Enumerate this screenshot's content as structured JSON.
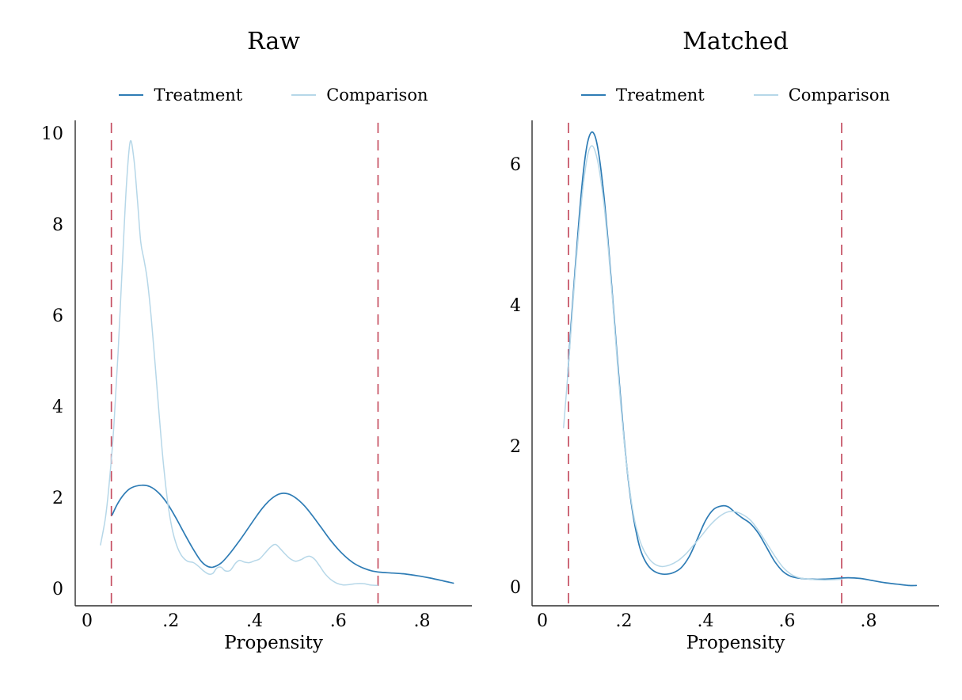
{
  "style": {
    "background": "#ffffff",
    "axis_color": "#2e2e2e",
    "text_color": "#000000"
  },
  "chart_data": [
    {
      "type": "line",
      "title": "Raw",
      "xlabel": "Propensity",
      "ylabel": "",
      "grid": false,
      "legend_position": "top-center",
      "xlim": [
        -0.028,
        0.92
      ],
      "ylim": [
        0,
        10.3
      ],
      "x_ticks": [
        {
          "v": 0.0,
          "label": "0"
        },
        {
          "v": 0.2,
          "label": ".2"
        },
        {
          "v": 0.4,
          "label": ".4"
        },
        {
          "v": 0.6,
          "label": ".6"
        },
        {
          "v": 0.8,
          "label": ".8"
        }
      ],
      "y_ticks": [
        {
          "v": 0,
          "label": "0"
        },
        {
          "v": 2,
          "label": "2"
        },
        {
          "v": 4,
          "label": "4"
        },
        {
          "v": 6,
          "label": "6"
        },
        {
          "v": 8,
          "label": "8"
        },
        {
          "v": 10,
          "label": "10"
        }
      ],
      "support_lines": {
        "color": "#c54f62",
        "style": "dashed",
        "x_values": [
          0.058,
          0.695
        ]
      },
      "series": [
        {
          "name": "Treatment",
          "color": "#2e7cb5",
          "points": [
            [
              0.06,
              1.65
            ],
            [
              0.072,
              1.88
            ],
            [
              0.088,
              2.1
            ],
            [
              0.105,
              2.24
            ],
            [
              0.13,
              2.3
            ],
            [
              0.15,
              2.27
            ],
            [
              0.17,
              2.14
            ],
            [
              0.19,
              1.92
            ],
            [
              0.21,
              1.62
            ],
            [
              0.23,
              1.28
            ],
            [
              0.25,
              0.95
            ],
            [
              0.27,
              0.66
            ],
            [
              0.285,
              0.53
            ],
            [
              0.3,
              0.5
            ],
            [
              0.32,
              0.59
            ],
            [
              0.34,
              0.79
            ],
            [
              0.36,
              1.03
            ],
            [
              0.38,
              1.29
            ],
            [
              0.4,
              1.56
            ],
            [
              0.42,
              1.81
            ],
            [
              0.44,
              2.0
            ],
            [
              0.46,
              2.11
            ],
            [
              0.48,
              2.11
            ],
            [
              0.5,
              2.01
            ],
            [
              0.52,
              1.84
            ],
            [
              0.54,
              1.61
            ],
            [
              0.56,
              1.36
            ],
            [
              0.58,
              1.11
            ],
            [
              0.6,
              0.89
            ],
            [
              0.62,
              0.71
            ],
            [
              0.64,
              0.57
            ],
            [
              0.66,
              0.48
            ],
            [
              0.68,
              0.42
            ],
            [
              0.7,
              0.39
            ],
            [
              0.73,
              0.37
            ],
            [
              0.76,
              0.35
            ],
            [
              0.79,
              0.31
            ],
            [
              0.82,
              0.26
            ],
            [
              0.85,
              0.2
            ],
            [
              0.875,
              0.15
            ]
          ]
        },
        {
          "name": "Comparison",
          "color": "#b6d7e8",
          "points": [
            [
              0.032,
              0.99
            ],
            [
              0.044,
              1.6
            ],
            [
              0.054,
              2.45
            ],
            [
              0.064,
              3.6
            ],
            [
              0.074,
              5.2
            ],
            [
              0.084,
              7.1
            ],
            [
              0.094,
              8.9
            ],
            [
              0.103,
              9.85
            ],
            [
              0.112,
              9.45
            ],
            [
              0.12,
              8.6
            ],
            [
              0.128,
              7.65
            ],
            [
              0.136,
              7.25
            ],
            [
              0.144,
              6.8
            ],
            [
              0.153,
              6.0
            ],
            [
              0.163,
              4.9
            ],
            [
              0.173,
              3.75
            ],
            [
              0.183,
              2.7
            ],
            [
              0.193,
              1.9
            ],
            [
              0.203,
              1.35
            ],
            [
              0.214,
              0.98
            ],
            [
              0.226,
              0.75
            ],
            [
              0.24,
              0.63
            ],
            [
              0.254,
              0.6
            ],
            [
              0.266,
              0.52
            ],
            [
              0.278,
              0.42
            ],
            [
              0.29,
              0.35
            ],
            [
              0.3,
              0.36
            ],
            [
              0.31,
              0.48
            ],
            [
              0.32,
              0.5
            ],
            [
              0.33,
              0.42
            ],
            [
              0.342,
              0.43
            ],
            [
              0.354,
              0.58
            ],
            [
              0.364,
              0.65
            ],
            [
              0.376,
              0.61
            ],
            [
              0.388,
              0.6
            ],
            [
              0.4,
              0.64
            ],
            [
              0.412,
              0.68
            ],
            [
              0.424,
              0.8
            ],
            [
              0.438,
              0.94
            ],
            [
              0.45,
              1.0
            ],
            [
              0.462,
              0.9
            ],
            [
              0.474,
              0.78
            ],
            [
              0.486,
              0.68
            ],
            [
              0.498,
              0.63
            ],
            [
              0.51,
              0.66
            ],
            [
              0.522,
              0.72
            ],
            [
              0.532,
              0.74
            ],
            [
              0.544,
              0.67
            ],
            [
              0.556,
              0.52
            ],
            [
              0.568,
              0.36
            ],
            [
              0.582,
              0.23
            ],
            [
              0.596,
              0.15
            ],
            [
              0.612,
              0.11
            ],
            [
              0.628,
              0.12
            ],
            [
              0.644,
              0.14
            ],
            [
              0.66,
              0.14
            ],
            [
              0.676,
              0.11
            ],
            [
              0.694,
              0.1
            ]
          ]
        }
      ]
    },
    {
      "type": "line",
      "title": "Matched",
      "xlabel": "Propensity",
      "ylabel": "",
      "grid": false,
      "legend_position": "top-center",
      "xlim": [
        -0.025,
        0.97
      ],
      "ylim": [
        0,
        6.6
      ],
      "x_ticks": [
        {
          "v": 0.0,
          "label": "0"
        },
        {
          "v": 0.2,
          "label": ".2"
        },
        {
          "v": 0.4,
          "label": ".4"
        },
        {
          "v": 0.6,
          "label": ".6"
        },
        {
          "v": 0.8,
          "label": ".8"
        }
      ],
      "y_ticks": [
        {
          "v": 0,
          "label": "0"
        },
        {
          "v": 2,
          "label": "2"
        },
        {
          "v": 4,
          "label": "4"
        },
        {
          "v": 6,
          "label": "6"
        }
      ],
      "support_lines": {
        "color": "#c54f62",
        "style": "dashed",
        "x_values": [
          0.064,
          0.734
        ]
      },
      "series": [
        {
          "name": "Treatment",
          "color": "#2e7cb5",
          "points": [
            [
              0.062,
              3.0
            ],
            [
              0.07,
              3.7
            ],
            [
              0.08,
              4.5
            ],
            [
              0.09,
              5.25
            ],
            [
              0.1,
              5.88
            ],
            [
              0.11,
              6.3
            ],
            [
              0.12,
              6.47
            ],
            [
              0.13,
              6.4
            ],
            [
              0.14,
              6.1
            ],
            [
              0.15,
              5.62
            ],
            [
              0.16,
              5.0
            ],
            [
              0.17,
              4.3
            ],
            [
              0.18,
              3.55
            ],
            [
              0.19,
              2.82
            ],
            [
              0.2,
              2.15
            ],
            [
              0.21,
              1.58
            ],
            [
              0.22,
              1.13
            ],
            [
              0.23,
              0.8
            ],
            [
              0.24,
              0.56
            ],
            [
              0.252,
              0.39
            ],
            [
              0.266,
              0.28
            ],
            [
              0.282,
              0.22
            ],
            [
              0.3,
              0.2
            ],
            [
              0.32,
              0.22
            ],
            [
              0.34,
              0.29
            ],
            [
              0.36,
              0.45
            ],
            [
              0.38,
              0.7
            ],
            [
              0.4,
              0.96
            ],
            [
              0.42,
              1.12
            ],
            [
              0.44,
              1.17
            ],
            [
              0.455,
              1.16
            ],
            [
              0.47,
              1.09
            ],
            [
              0.49,
              1.0
            ],
            [
              0.51,
              0.92
            ],
            [
              0.53,
              0.78
            ],
            [
              0.55,
              0.58
            ],
            [
              0.57,
              0.38
            ],
            [
              0.59,
              0.24
            ],
            [
              0.61,
              0.17
            ],
            [
              0.635,
              0.14
            ],
            [
              0.66,
              0.13
            ],
            [
              0.69,
              0.13
            ],
            [
              0.72,
              0.14
            ],
            [
              0.75,
              0.15
            ],
            [
              0.78,
              0.14
            ],
            [
              0.81,
              0.11
            ],
            [
              0.84,
              0.08
            ],
            [
              0.87,
              0.06
            ],
            [
              0.9,
              0.04
            ],
            [
              0.917,
              0.04
            ]
          ]
        },
        {
          "name": "Comparison",
          "color": "#b6d7e8",
          "points": [
            [
              0.052,
              2.28
            ],
            [
              0.062,
              3.0
            ],
            [
              0.072,
              3.8
            ],
            [
              0.082,
              4.58
            ],
            [
              0.092,
              5.25
            ],
            [
              0.102,
              5.8
            ],
            [
              0.112,
              6.17
            ],
            [
              0.122,
              6.28
            ],
            [
              0.132,
              6.15
            ],
            [
              0.142,
              5.85
            ],
            [
              0.152,
              5.4
            ],
            [
              0.162,
              4.8
            ],
            [
              0.172,
              4.1
            ],
            [
              0.182,
              3.35
            ],
            [
              0.192,
              2.62
            ],
            [
              0.202,
              2.0
            ],
            [
              0.212,
              1.5
            ],
            [
              0.222,
              1.1
            ],
            [
              0.232,
              0.82
            ],
            [
              0.244,
              0.6
            ],
            [
              0.258,
              0.45
            ],
            [
              0.274,
              0.35
            ],
            [
              0.292,
              0.31
            ],
            [
              0.312,
              0.33
            ],
            [
              0.332,
              0.39
            ],
            [
              0.352,
              0.49
            ],
            [
              0.372,
              0.62
            ],
            [
              0.392,
              0.76
            ],
            [
              0.412,
              0.9
            ],
            [
              0.432,
              1.01
            ],
            [
              0.452,
              1.08
            ],
            [
              0.47,
              1.09
            ],
            [
              0.49,
              1.05
            ],
            [
              0.51,
              0.97
            ],
            [
              0.53,
              0.82
            ],
            [
              0.55,
              0.64
            ],
            [
              0.57,
              0.46
            ],
            [
              0.59,
              0.3
            ],
            [
              0.61,
              0.2
            ],
            [
              0.63,
              0.15
            ],
            [
              0.655,
              0.13
            ],
            [
              0.68,
              0.12
            ],
            [
              0.705,
              0.12
            ],
            [
              0.735,
              0.13
            ]
          ]
        }
      ]
    }
  ]
}
